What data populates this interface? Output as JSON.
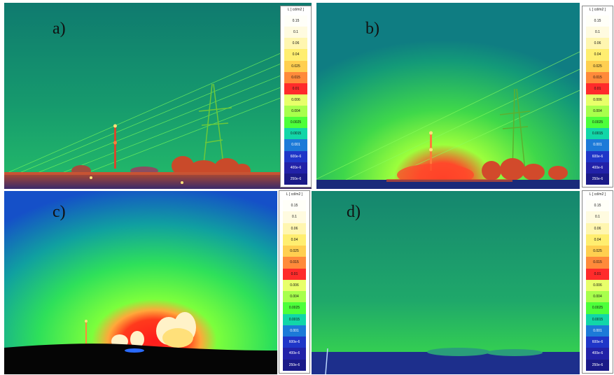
{
  "panels": [
    {
      "label": "a)",
      "scene": "pylons"
    },
    {
      "label": "b)",
      "scene": "pylons-glow"
    },
    {
      "label": "c)",
      "scene": "plant"
    },
    {
      "label": "d)",
      "scene": "field"
    }
  ],
  "legend": {
    "title": "L [ cd/m2 ]",
    "ticks": [
      "0.15",
      "0.1",
      "0.06",
      "0.04",
      "0.025",
      "0.015",
      "0.01",
      "0.006",
      "0.004",
      "0.0025",
      "0.0015",
      "0.001",
      "600e-6",
      "400e-6",
      "250e-6"
    ],
    "tick_colors": [
      "#fffff8",
      "#fffbe0",
      "#fff6b0",
      "#ffee70",
      "#ffcf50",
      "#ff8a3a",
      "#ff2b2b",
      "#e8ff6a",
      "#a8ff4c",
      "#4dff3a",
      "#12d6a8",
      "#1c7ad8",
      "#1f36c8",
      "#2222a8",
      "#1a1a88"
    ],
    "dark_from_index": 11
  }
}
